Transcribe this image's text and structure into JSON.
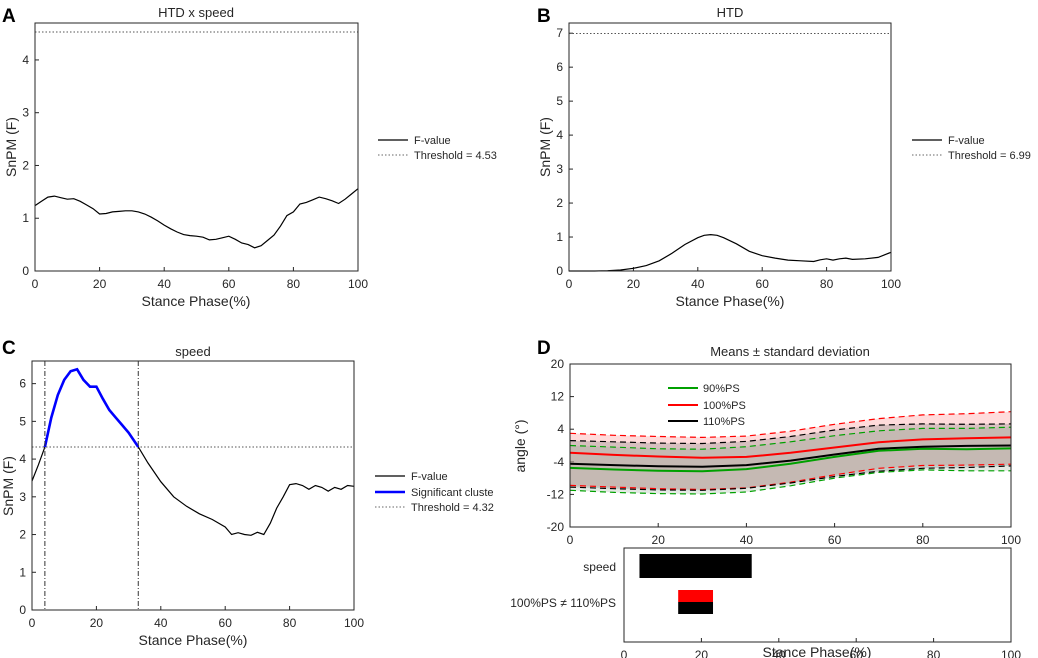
{
  "chart_data": [
    {
      "type": "line",
      "panel": "A",
      "title": "HTD x speed",
      "xlabel": "Stance Phase(%)",
      "ylabel": "SnPM (F)",
      "xlim": [
        0,
        100
      ],
      "ylim": [
        0,
        4.7
      ],
      "xticks": [
        "0",
        "20",
        "40",
        "60",
        "80",
        "100"
      ],
      "yticks": [
        "0",
        "1",
        "2",
        "3",
        "4"
      ],
      "threshold": 4.53,
      "legend": [
        "F-value",
        "Threshold = 4.53"
      ],
      "x": [
        0,
        2,
        4,
        6,
        8,
        10,
        12,
        14,
        16,
        18,
        20,
        22,
        24,
        26,
        28,
        30,
        32,
        34,
        36,
        38,
        40,
        42,
        44,
        46,
        48,
        50,
        52,
        54,
        56,
        58,
        60,
        62,
        64,
        66,
        68,
        70,
        72,
        74,
        76,
        78,
        80,
        82,
        84,
        86,
        88,
        90,
        92,
        94,
        96,
        98,
        100
      ],
      "y": [
        1.24,
        1.32,
        1.4,
        1.42,
        1.39,
        1.36,
        1.37,
        1.32,
        1.25,
        1.18,
        1.08,
        1.09,
        1.12,
        1.13,
        1.14,
        1.14,
        1.12,
        1.08,
        1.02,
        0.95,
        0.87,
        0.8,
        0.74,
        0.69,
        0.67,
        0.66,
        0.64,
        0.59,
        0.6,
        0.63,
        0.66,
        0.6,
        0.53,
        0.5,
        0.44,
        0.48,
        0.58,
        0.68,
        0.85,
        1.05,
        1.12,
        1.27,
        1.3,
        1.35,
        1.4,
        1.37,
        1.33,
        1.28,
        1.36,
        1.46,
        1.56
      ]
    },
    {
      "type": "line",
      "panel": "B",
      "title": "HTD",
      "xlabel": "Stance Phase(%)",
      "ylabel": "SnPM (F)",
      "xlim": [
        0,
        100
      ],
      "ylim": [
        0,
        7.3
      ],
      "xticks": [
        "0",
        "20",
        "40",
        "60",
        "80",
        "100"
      ],
      "yticks": [
        "0",
        "1",
        "2",
        "3",
        "4",
        "5",
        "6",
        "7"
      ],
      "threshold": 6.99,
      "legend": [
        "F-value",
        "Threshold = 6.99"
      ],
      "x": [
        0,
        4,
        8,
        12,
        16,
        20,
        24,
        28,
        32,
        36,
        40,
        42,
        44,
        46,
        48,
        52,
        56,
        60,
        64,
        68,
        72,
        76,
        78,
        80,
        82,
        84,
        86,
        88,
        92,
        96,
        100
      ],
      "y": [
        0.0,
        0.0,
        0.0,
        0.01,
        0.03,
        0.08,
        0.16,
        0.3,
        0.52,
        0.78,
        0.98,
        1.05,
        1.07,
        1.05,
        0.98,
        0.8,
        0.58,
        0.45,
        0.38,
        0.32,
        0.3,
        0.28,
        0.33,
        0.36,
        0.32,
        0.36,
        0.38,
        0.34,
        0.36,
        0.4,
        0.55
      ]
    },
    {
      "type": "line",
      "panel": "C",
      "title": "speed",
      "xlabel": "Stance Phase(%)",
      "ylabel": "SnPM (F)",
      "xlim": [
        0,
        100
      ],
      "ylim": [
        0,
        6.6
      ],
      "xticks": [
        "0",
        "20",
        "40",
        "60",
        "80",
        "100"
      ],
      "yticks": [
        "0",
        "1",
        "2",
        "3",
        "4",
        "5",
        "6"
      ],
      "threshold": 4.32,
      "cluster_bounds": [
        4,
        33
      ],
      "legend": [
        "F-value",
        "Significant cluste",
        "Threshold = 4.32"
      ],
      "x": [
        0,
        2,
        4,
        6,
        8,
        10,
        12,
        14,
        16,
        18,
        20,
        22,
        24,
        26,
        28,
        30,
        33,
        36,
        40,
        44,
        48,
        52,
        56,
        60,
        62,
        64,
        66,
        68,
        70,
        72,
        74,
        76,
        78,
        80,
        82,
        84,
        86,
        88,
        90,
        92,
        94,
        96,
        98,
        100
      ],
      "y": [
        3.42,
        3.85,
        4.32,
        5.1,
        5.7,
        6.1,
        6.33,
        6.38,
        6.1,
        5.92,
        5.92,
        5.6,
        5.3,
        5.1,
        4.9,
        4.7,
        4.32,
        3.9,
        3.4,
        3.0,
        2.75,
        2.55,
        2.4,
        2.2,
        2.0,
        2.05,
        2.0,
        1.98,
        2.06,
        2.0,
        2.3,
        2.7,
        3.0,
        3.32,
        3.35,
        3.3,
        3.2,
        3.3,
        3.25,
        3.15,
        3.25,
        3.2,
        3.3,
        3.28
      ]
    },
    {
      "type": "line",
      "panel": "D",
      "title": "Means ± standard deviation",
      "xlabel": "",
      "ylabel": "angle (°)",
      "xlim": [
        0,
        100
      ],
      "ylim": [
        -20,
        20
      ],
      "xticks": [
        "0",
        "20",
        "40",
        "60",
        "80",
        "100"
      ],
      "yticks": [
        "20",
        "12",
        "4",
        "-4",
        "-12",
        "-20"
      ],
      "x": [
        0,
        10,
        20,
        30,
        40,
        50,
        60,
        70,
        80,
        90,
        100
      ],
      "series": [
        {
          "name": "90%PS",
          "color": "#00a000",
          "values": [
            -5.5,
            -5.9,
            -6.2,
            -6.3,
            -5.8,
            -4.5,
            -2.8,
            -1.3,
            -0.8,
            -0.9,
            -0.7
          ]
        },
        {
          "name": "100%PS",
          "color": "#ff0000",
          "values": [
            -1.8,
            -2.3,
            -2.7,
            -3.0,
            -2.8,
            -1.8,
            -0.5,
            0.8,
            1.5,
            1.8,
            2.0
          ]
        },
        {
          "name": "110%PS",
          "color": "#000000",
          "values": [
            -4.5,
            -4.8,
            -5.1,
            -5.2,
            -4.8,
            -3.7,
            -2.2,
            -0.8,
            -0.3,
            -0.1,
            0.0
          ]
        }
      ],
      "upper_sd_90": [
        0.0,
        -0.4,
        -0.8,
        -0.9,
        -0.3,
        0.9,
        2.4,
        3.6,
        4.2,
        4.2,
        4.5
      ],
      "lower_sd_90": [
        -11.0,
        -11.5,
        -11.8,
        -11.9,
        -11.4,
        -9.9,
        -8.0,
        -6.6,
        -6.0,
        -6.2,
        -6.2
      ],
      "upper_sd_100": [
        3.0,
        2.5,
        2.2,
        2.0,
        2.3,
        3.5,
        5.2,
        6.6,
        7.5,
        7.8,
        8.3
      ],
      "lower_sd_100": [
        -9.8,
        -10.2,
        -10.6,
        -10.8,
        -10.4,
        -9.0,
        -7.2,
        -5.6,
        -4.9,
        -4.8,
        -4.6
      ],
      "upper_sd_110": [
        1.2,
        0.9,
        0.6,
        0.5,
        1.0,
        2.2,
        3.8,
        5.0,
        5.3,
        5.2,
        5.3
      ],
      "lower_sd_110": [
        -10.2,
        -10.6,
        -10.9,
        -11.0,
        -10.5,
        -9.2,
        -7.6,
        -6.3,
        -5.6,
        -5.4,
        -5.0
      ]
    },
    {
      "type": "bar",
      "panel": "D-significance",
      "xlabel": "Stance Phase(%)",
      "xlim": [
        0,
        100
      ],
      "xticks": [
        "0",
        "20",
        "40",
        "60",
        "80",
        "100"
      ],
      "rows": [
        {
          "label": "speed",
          "segments": [
            {
              "from": 4,
              "to": 33,
              "color": "#000000",
              "frac_from": 0,
              "frac_to": 1
            }
          ]
        },
        {
          "label": "100%PS ≠ 110%PS",
          "segments": [
            {
              "from": 14,
              "to": 23,
              "color": "#ff0000",
              "frac_from": 0,
              "frac_to": 0.5
            },
            {
              "from": 14,
              "to": 23,
              "color": "#000000",
              "frac_from": 0.5,
              "frac_to": 1
            }
          ]
        }
      ]
    }
  ]
}
